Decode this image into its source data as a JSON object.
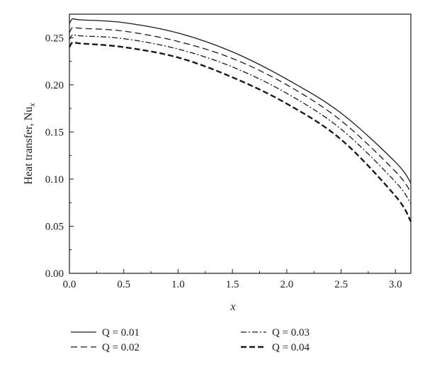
{
  "chart_data": {
    "type": "line",
    "xlabel": "x",
    "ylabel_prefix": "Heat transfer, Nu",
    "ylabel_subscript": "x",
    "xlim": [
      0,
      3.1416
    ],
    "ylim": [
      0,
      0.275
    ],
    "x_ticks": [
      "0.0",
      "0.5",
      "1.0",
      "1.5",
      "2.0",
      "2.5",
      "3.0"
    ],
    "y_ticks": [
      "0.00",
      "0.05",
      "0.10",
      "0.15",
      "0.20",
      "0.25"
    ],
    "grid": false,
    "legend_position": "bottom",
    "series": [
      {
        "name": "Q = 0.01",
        "dash": "solid",
        "color": "#1a1a1a",
        "x": [
          0.0,
          0.03,
          0.1,
          0.5,
          1.0,
          1.5,
          2.0,
          2.5,
          3.0,
          3.1416
        ],
        "y": [
          0.265,
          0.27,
          0.269,
          0.266,
          0.255,
          0.235,
          0.206,
          0.17,
          0.118,
          0.096
        ]
      },
      {
        "name": "Q = 0.02",
        "dash": "dashed",
        "color": "#1a1a1a",
        "x": [
          0.0,
          0.03,
          0.1,
          0.5,
          1.0,
          1.5,
          2.0,
          2.5,
          3.0,
          3.1416
        ],
        "y": [
          0.255,
          0.261,
          0.26,
          0.257,
          0.246,
          0.228,
          0.2,
          0.162,
          0.108,
          0.086
        ]
      },
      {
        "name": "Q = 0.03",
        "dash": "dashdot",
        "color": "#1a1a1a",
        "x": [
          0.0,
          0.03,
          0.1,
          0.5,
          1.0,
          1.5,
          2.0,
          2.5,
          3.0,
          3.1416
        ],
        "y": [
          0.248,
          0.253,
          0.252,
          0.249,
          0.238,
          0.219,
          0.191,
          0.153,
          0.097,
          0.074
        ]
      },
      {
        "name": "Q = 0.04",
        "dash": "dashed-bold",
        "color": "#1a1a1a",
        "x": [
          0.0,
          0.03,
          0.1,
          0.5,
          1.0,
          1.5,
          2.0,
          2.5,
          3.0,
          3.1416
        ],
        "y": [
          0.24,
          0.245,
          0.244,
          0.24,
          0.229,
          0.208,
          0.18,
          0.142,
          0.082,
          0.055
        ]
      }
    ]
  }
}
